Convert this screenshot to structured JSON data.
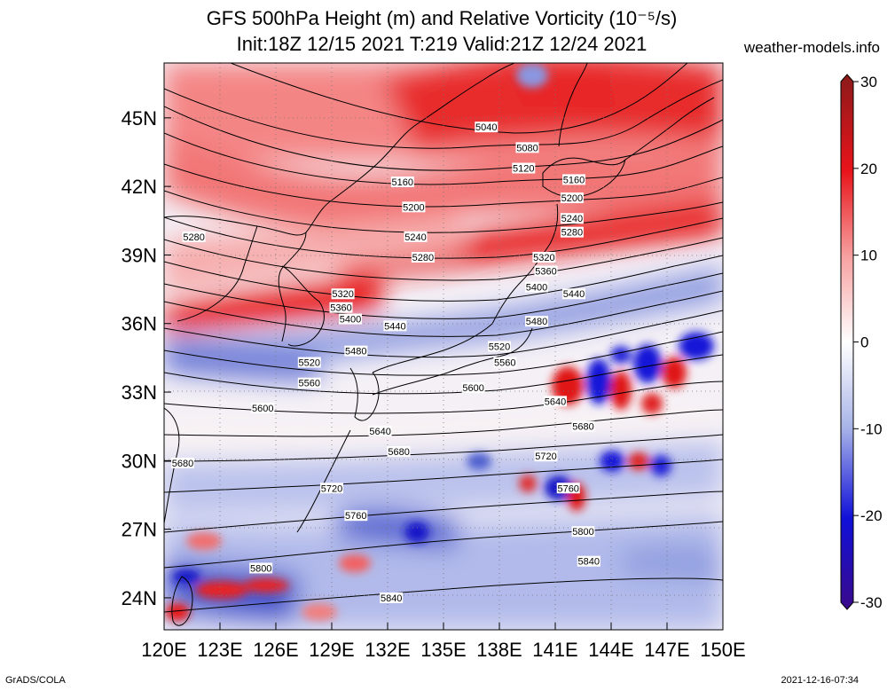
{
  "header": {
    "title_line1": "GFS 500hPa Height (m) and Relative Vorticity (10⁻⁵/s)",
    "title_line2": "Init:18Z 12/15 2021 T:219 Valid:21Z 12/24 2021",
    "brand": "weather-models.info"
  },
  "footer": {
    "left": "GrADS/COLA",
    "right": "2021-12-16-07:34"
  },
  "map": {
    "lon_labels": [
      "120E",
      "123E",
      "126E",
      "129E",
      "132E",
      "135E",
      "138E",
      "141E",
      "144E",
      "147E",
      "150E"
    ],
    "lat_labels": [
      "45N",
      "42N",
      "39N",
      "36N",
      "33N",
      "30N",
      "27N",
      "24N"
    ],
    "contours": [
      {
        "label": "5040",
        "lon": 137.3,
        "lat": 44.6
      },
      {
        "label": "5080",
        "lon": 139.5,
        "lat": 43.7
      },
      {
        "label": "5120",
        "lon": 139.3,
        "lat": 42.8
      },
      {
        "label": "5160",
        "lon": 132.8,
        "lat": 42.2
      },
      {
        "label": "5160",
        "lon": 142.0,
        "lat": 42.3
      },
      {
        "label": "5200",
        "lon": 133.4,
        "lat": 41.1
      },
      {
        "label": "5200",
        "lon": 141.9,
        "lat": 41.5
      },
      {
        "label": "5240",
        "lon": 133.5,
        "lat": 39.8
      },
      {
        "label": "5240",
        "lon": 141.9,
        "lat": 40.6
      },
      {
        "label": "5280",
        "lon": 121.6,
        "lat": 39.8
      },
      {
        "label": "5280",
        "lon": 133.9,
        "lat": 38.9
      },
      {
        "label": "5280",
        "lon": 141.9,
        "lat": 40.0
      },
      {
        "label": "5320",
        "lon": 129.6,
        "lat": 37.3
      },
      {
        "label": "5320",
        "lon": 140.4,
        "lat": 38.9
      },
      {
        "label": "5360",
        "lon": 129.5,
        "lat": 36.7
      },
      {
        "label": "5360",
        "lon": 140.5,
        "lat": 38.3
      },
      {
        "label": "5400",
        "lon": 130.0,
        "lat": 36.2
      },
      {
        "label": "5400",
        "lon": 140.0,
        "lat": 37.6
      },
      {
        "label": "5440",
        "lon": 132.4,
        "lat": 35.9
      },
      {
        "label": "5440",
        "lon": 142.0,
        "lat": 37.3
      },
      {
        "label": "5480",
        "lon": 130.3,
        "lat": 34.8
      },
      {
        "label": "5480",
        "lon": 140.0,
        "lat": 36.1
      },
      {
        "label": "5520",
        "lon": 127.8,
        "lat": 34.3
      },
      {
        "label": "5520",
        "lon": 138.0,
        "lat": 35.0
      },
      {
        "label": "5560",
        "lon": 127.8,
        "lat": 33.4
      },
      {
        "label": "5560",
        "lon": 138.3,
        "lat": 34.3
      },
      {
        "label": "5600",
        "lon": 125.3,
        "lat": 32.3
      },
      {
        "label": "5600",
        "lon": 136.6,
        "lat": 33.2
      },
      {
        "label": "5640",
        "lon": 131.6,
        "lat": 31.3
      },
      {
        "label": "5640",
        "lon": 141.0,
        "lat": 32.6
      },
      {
        "label": "5680",
        "lon": 121.0,
        "lat": 29.9
      },
      {
        "label": "5680",
        "lon": 132.6,
        "lat": 30.4
      },
      {
        "label": "5680",
        "lon": 142.5,
        "lat": 31.5
      },
      {
        "label": "5720",
        "lon": 129.0,
        "lat": 28.8
      },
      {
        "label": "5720",
        "lon": 140.5,
        "lat": 30.2
      },
      {
        "label": "5760",
        "lon": 130.3,
        "lat": 27.6
      },
      {
        "label": "5760",
        "lon": 141.7,
        "lat": 28.8
      },
      {
        "label": "5800",
        "lon": 125.2,
        "lat": 25.3
      },
      {
        "label": "5800",
        "lon": 142.5,
        "lat": 26.9
      },
      {
        "label": "5840",
        "lon": 132.2,
        "lat": 24.0
      },
      {
        "label": "5840",
        "lon": 142.8,
        "lat": 25.6
      }
    ]
  },
  "colorbar": {
    "ticks": [
      "30",
      "20",
      "10",
      "0",
      "-10",
      "-20",
      "-30"
    ],
    "colors": {
      "max": "#8b1a1a",
      "strong_positive": "#e8141a",
      "positive": "#f7a0a0",
      "zero": "#ffffff",
      "negative": "#a8b4e8",
      "strong_negative": "#1010d8",
      "min": "#3a0a8a"
    }
  }
}
